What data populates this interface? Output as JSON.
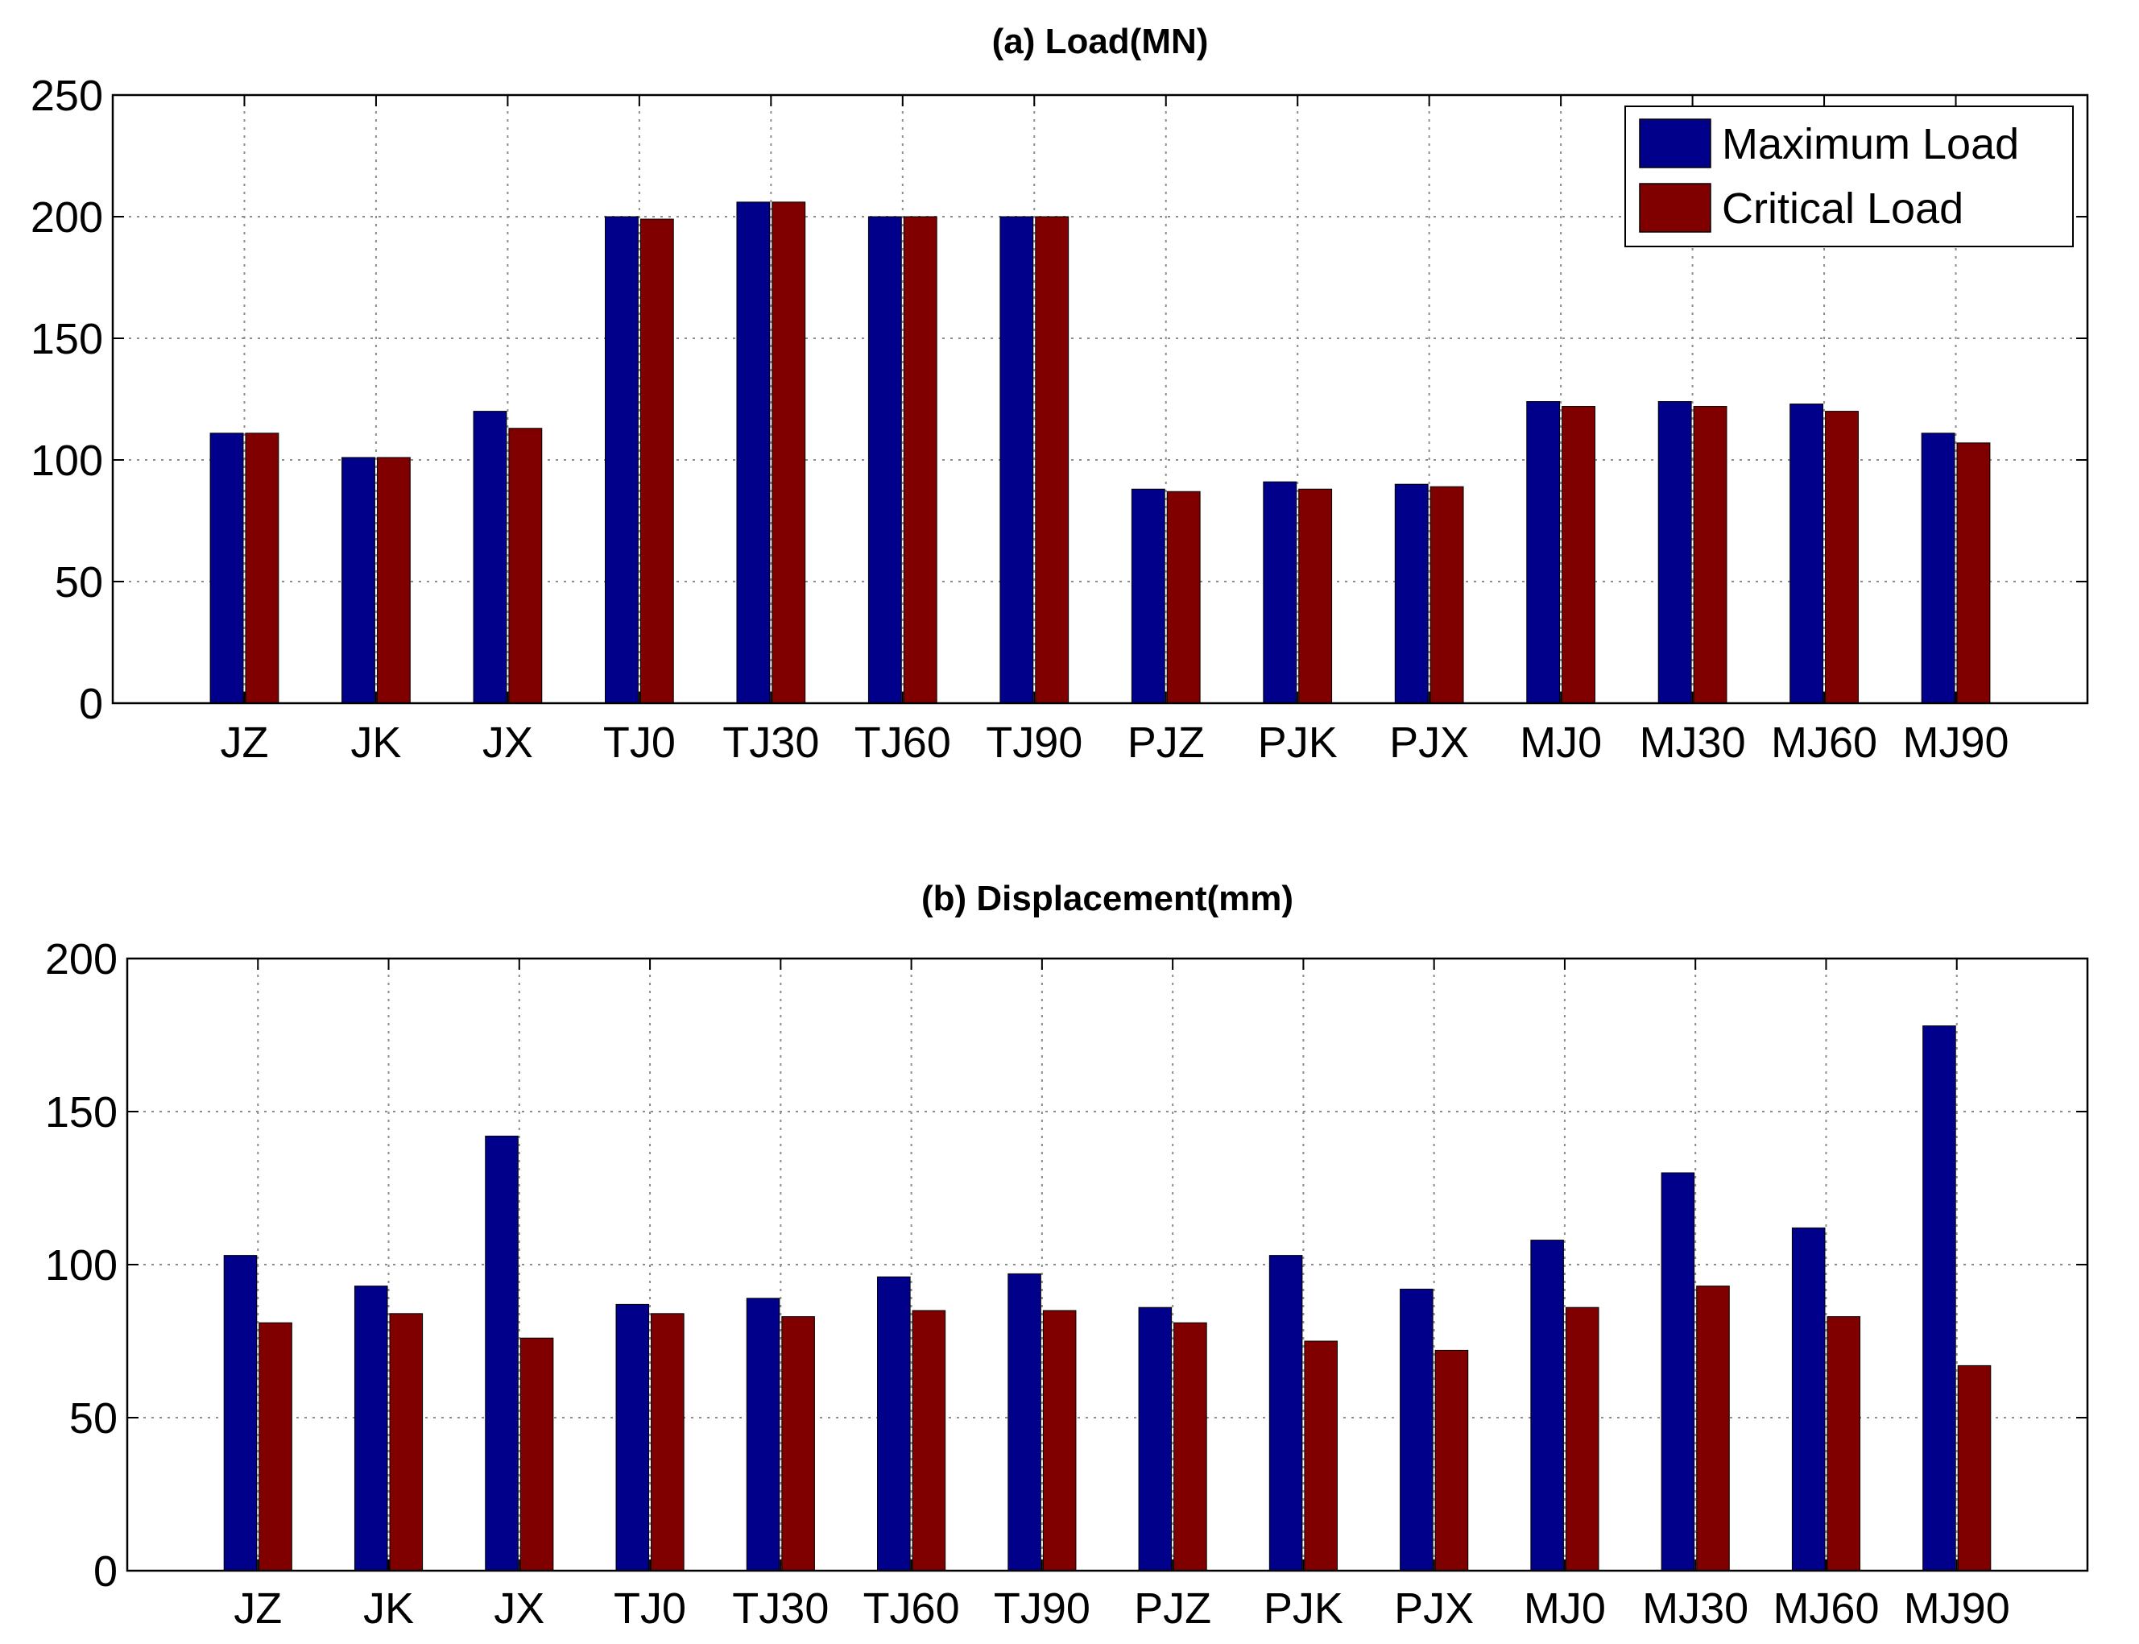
{
  "chart_data": [
    {
      "type": "bar",
      "title": "(a) Load(MN)",
      "categories": [
        "JZ",
        "JK",
        "JX",
        "TJ0",
        "TJ30",
        "TJ60",
        "TJ90",
        "PJZ",
        "PJK",
        "PJX",
        "MJ0",
        "MJ30",
        "MJ60",
        "MJ90"
      ],
      "series": [
        {
          "name": "Maximum Load",
          "color": "#00008b",
          "values": [
            111,
            101,
            120,
            200,
            206,
            200,
            200,
            88,
            91,
            90,
            124,
            124,
            123,
            111
          ]
        },
        {
          "name": "Critical Load",
          "color": "#800000",
          "values": [
            111,
            101,
            113,
            199,
            206,
            200,
            200,
            87,
            88,
            89,
            122,
            122,
            120,
            107
          ]
        }
      ],
      "ylim": [
        0,
        250
      ],
      "yticks": [
        0,
        50,
        100,
        150,
        200,
        250
      ],
      "grid": true,
      "legend": "top-right",
      "xlabel": "",
      "ylabel": ""
    },
    {
      "type": "bar",
      "title": "(b) Displacement(mm)",
      "categories": [
        "JZ",
        "JK",
        "JX",
        "TJ0",
        "TJ30",
        "TJ60",
        "TJ90",
        "PJZ",
        "PJK",
        "PJX",
        "MJ0",
        "MJ30",
        "MJ60",
        "MJ90"
      ],
      "series": [
        {
          "name": "Maximum Load",
          "color": "#00008b",
          "values": [
            103,
            93,
            142,
            87,
            89,
            96,
            97,
            86,
            103,
            92,
            108,
            130,
            112,
            178
          ]
        },
        {
          "name": "Critical Load",
          "color": "#800000",
          "values": [
            81,
            84,
            76,
            84,
            83,
            85,
            85,
            81,
            75,
            72,
            86,
            93,
            83,
            67
          ]
        }
      ],
      "ylim": [
        0,
        200
      ],
      "yticks": [
        0,
        50,
        100,
        150,
        200
      ],
      "grid": true,
      "xlabel": "",
      "ylabel": ""
    }
  ]
}
